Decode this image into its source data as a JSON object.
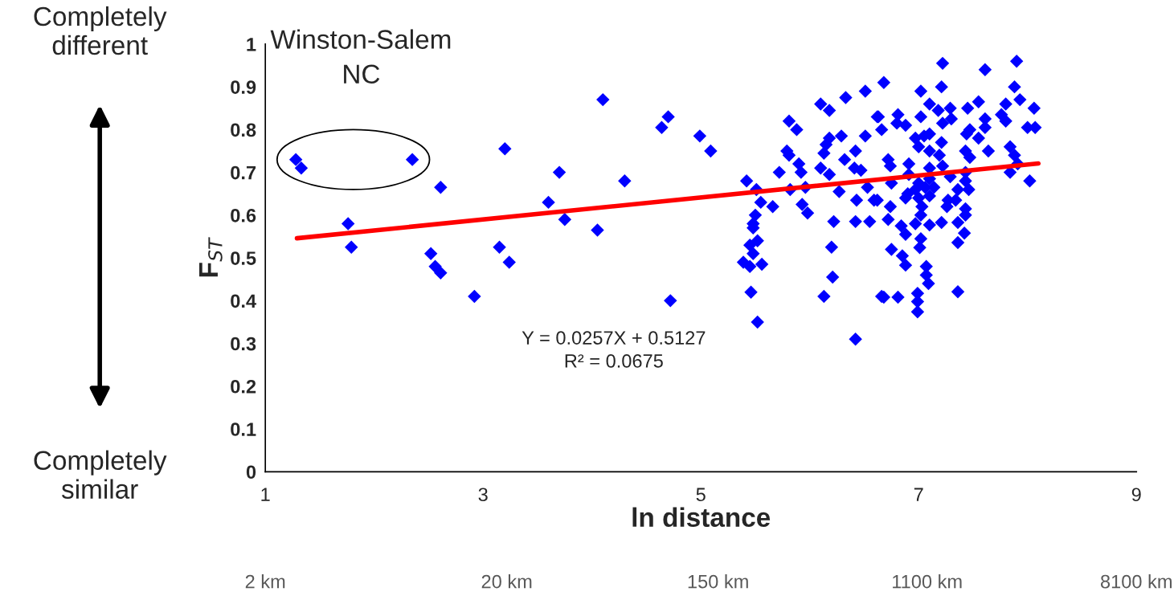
{
  "chart_data": {
    "type": "scatter",
    "xlabel": "ln distance",
    "ylabel": "F$_{ST}$",
    "xlim": [
      1,
      9
    ],
    "xticks": [
      1,
      3,
      5,
      7,
      9
    ],
    "ylim": [
      0,
      1
    ],
    "yticks": [
      0,
      0.1,
      0.2,
      0.3,
      0.4,
      0.5,
      0.6,
      0.7,
      0.8,
      0.9,
      1
    ],
    "x2lim": [
      2,
      8100
    ],
    "x2ticks": [
      {
        "value": 2,
        "label": "2 km"
      },
      {
        "value": 20,
        "label": "20 km"
      },
      {
        "value": 150,
        "label": "150 km"
      },
      {
        "value": 1100,
        "label": "1100 km"
      },
      {
        "value": 8100,
        "label": "8100 km"
      }
    ],
    "log": "x2",
    "grid": false,
    "legend": false,
    "annotations": [
      "Completely different",
      "Completely similar",
      "Y = 0.0257X + 0.5127\nR² = 0.0675",
      "Winston-Salem\nNC"
    ],
    "series": [
      {
        "color": "#0000ff",
        "marker": "diamond",
        "x": [
          1.28,
          1.33,
          2.35,
          1.76,
          1.79,
          2.61,
          2.52,
          2.56,
          2.61,
          2.92,
          3.2,
          3.15,
          3.24,
          3.6,
          3.7,
          3.75,
          4.05,
          4.1,
          4.3,
          4.64,
          4.7,
          4.72,
          4.99,
          5.09,
          5.42,
          5.51,
          5.55,
          5.66,
          5.5,
          5.48,
          5.48,
          5.45,
          5.52,
          5.48,
          5.39,
          5.45,
          5.56,
          5.46,
          5.52,
          5.72,
          5.79,
          5.81,
          5.81,
          5.88,
          5.82,
          5.9,
          5.92,
          5.96,
          5.93,
          5.98,
          6.1,
          6.18,
          6.18,
          6.15,
          6.13,
          6.1,
          6.18,
          6.29,
          6.32,
          6.27,
          6.22,
          6.2,
          6.21,
          6.13,
          6.33,
          6.51,
          6.62,
          6.51,
          6.42,
          6.41,
          6.47,
          6.53,
          6.43,
          6.59,
          6.42,
          6.55,
          6.66,
          6.42,
          6.68,
          7.22,
          7.61,
          7.9,
          7.02,
          7.21,
          7.1,
          7.18,
          7.29,
          7.45,
          7.55,
          7.8,
          7.88,
          7.93,
          8.06,
          6.63,
          6.81,
          6.8,
          6.88,
          6.66,
          7.02,
          7.22,
          7.3,
          7.47,
          7.61,
          7.61,
          7.76,
          7.8,
          8.0,
          8.07,
          6.97,
          7.05,
          7.1,
          7.0,
          7.1,
          7.21,
          7.44,
          7.55,
          7.43,
          7.47,
          7.64,
          7.84,
          7.88,
          7.91,
          7.19,
          6.72,
          6.74,
          6.91,
          7.1,
          7.22,
          6.75,
          6.91,
          7.0,
          7.1,
          7.29,
          7.43,
          7.43,
          7.84,
          8.02,
          6.9,
          6.97,
          7.06,
          7.14,
          6.88,
          7.0,
          7.1,
          7.36,
          7.46,
          6.62,
          7.27,
          7.34,
          6.74,
          7.03,
          7.26,
          7.43,
          7.43,
          6.72,
          7.02,
          6.84,
          6.97,
          7.1,
          7.21,
          7.36,
          6.88,
          7.02,
          7.42,
          7.36,
          7.01,
          6.75,
          6.85,
          6.88,
          7.07,
          7.07,
          7.09,
          6.68,
          6.81,
          6.99,
          6.99,
          6.99,
          7.36
        ],
        "values": [
          0.73,
          0.71,
          0.73,
          0.58,
          0.525,
          0.665,
          0.51,
          0.48,
          0.465,
          0.41,
          0.755,
          0.525,
          0.49,
          0.63,
          0.7,
          0.59,
          0.565,
          0.87,
          0.68,
          0.805,
          0.83,
          0.4,
          0.785,
          0.75,
          0.68,
          0.66,
          0.63,
          0.62,
          0.6,
          0.58,
          0.57,
          0.53,
          0.54,
          0.51,
          0.49,
          0.48,
          0.485,
          0.42,
          0.35,
          0.7,
          0.75,
          0.74,
          0.82,
          0.8,
          0.66,
          0.72,
          0.7,
          0.665,
          0.625,
          0.605,
          0.86,
          0.845,
          0.78,
          0.765,
          0.745,
          0.71,
          0.695,
          0.785,
          0.73,
          0.655,
          0.585,
          0.525,
          0.455,
          0.41,
          0.875,
          0.89,
          0.83,
          0.785,
          0.75,
          0.71,
          0.705,
          0.665,
          0.635,
          0.635,
          0.585,
          0.585,
          0.41,
          0.31,
          0.91,
          0.955,
          0.94,
          0.96,
          0.89,
          0.9,
          0.86,
          0.845,
          0.85,
          0.85,
          0.865,
          0.86,
          0.9,
          0.87,
          0.85,
          0.83,
          0.835,
          0.815,
          0.81,
          0.8,
          0.83,
          0.815,
          0.825,
          0.8,
          0.825,
          0.805,
          0.835,
          0.82,
          0.805,
          0.805,
          0.78,
          0.785,
          0.79,
          0.76,
          0.75,
          0.77,
          0.79,
          0.78,
          0.75,
          0.735,
          0.75,
          0.76,
          0.74,
          0.72,
          0.74,
          0.73,
          0.715,
          0.72,
          0.71,
          0.715,
          0.675,
          0.695,
          0.675,
          0.685,
          0.69,
          0.7,
          0.68,
          0.7,
          0.68,
          0.65,
          0.66,
          0.665,
          0.665,
          0.64,
          0.64,
          0.645,
          0.66,
          0.66,
          0.635,
          0.635,
          0.635,
          0.62,
          0.62,
          0.62,
          0.615,
          0.6,
          0.59,
          0.6,
          0.575,
          0.58,
          0.577,
          0.583,
          0.583,
          0.555,
          0.545,
          0.558,
          0.536,
          0.524,
          0.52,
          0.505,
          0.483,
          0.48,
          0.46,
          0.44,
          0.408,
          0.408,
          0.417,
          0.398,
          0.374,
          0.421
        ]
      },
      {
        "type": "line",
        "color": "#ff0000",
        "marker": "none",
        "x": [
          1.29,
          8.1
        ],
        "values": [
          0.546,
          0.721
        ]
      }
    ]
  }
}
